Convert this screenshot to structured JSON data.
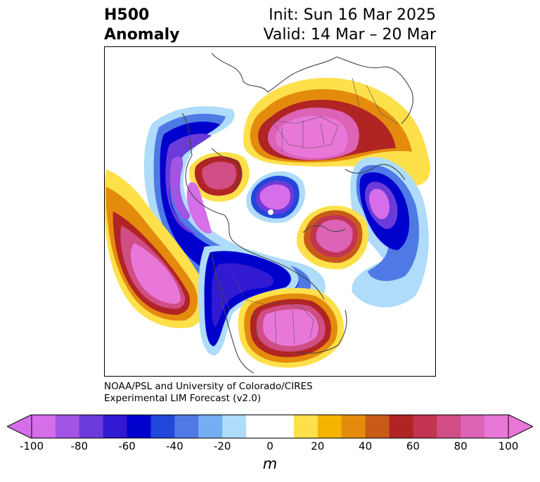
{
  "title": {
    "left_line1": "H500",
    "left_line2": "Anomaly",
    "right_line1": "Init: Sun 16 Mar 2025",
    "right_line2": "Valid: 14 Mar – 20 Mar"
  },
  "credit": {
    "line1": "NOAA/PSL and University of Colorado/CIRES",
    "line2": "Experimental LIM Forecast (v2.0)"
  },
  "colorbar": {
    "unit": "m",
    "ticks": [
      "-100",
      "-80",
      "-60",
      "-40",
      "-20",
      "0",
      "20",
      "40",
      "60",
      "80",
      "100"
    ],
    "colors": [
      "#d66de9",
      "#a155e2",
      "#6b3bd9",
      "#3219d2",
      "#0000cc",
      "#2247db",
      "#4f7ae6",
      "#75aef2",
      "#aedcfa",
      "#ffffff",
      "#ffffff",
      "#fee04b",
      "#f4b400",
      "#e48b0d",
      "#c95b18",
      "#b02424",
      "#c23452",
      "#d04d85",
      "#dc63b6",
      "#e877d8"
    ],
    "under_color": "#d66de9",
    "over_color": "#e877d8"
  },
  "map_features": {
    "projection": "north-polar-stereographic",
    "anomalies": [
      {
        "region": "Greenland / North Atlantic",
        "sign": "positive",
        "peak_m": 100
      },
      {
        "region": "Alaska / Bering Strait",
        "sign": "positive",
        "peak_m": 100
      },
      {
        "region": "East Pacific / Gulf of Alaska",
        "sign": "positive",
        "peak_m": 100
      },
      {
        "region": "Eastern Siberia",
        "sign": "positive",
        "peak_m": 90
      },
      {
        "region": "Western Europe",
        "sign": "positive",
        "peak_m": 100
      },
      {
        "region": "Arctic Ocean / North Pole",
        "sign": "negative",
        "peak_m": -100
      },
      {
        "region": "Central Asia / Kazakhstan",
        "sign": "negative",
        "peak_m": -100
      },
      {
        "region": "North Pacific",
        "sign": "negative",
        "peak_m": -100
      },
      {
        "region": "Eastern Europe / Caspian",
        "sign": "negative",
        "peak_m": -90
      },
      {
        "region": "Western Canada / Northeast Pacific",
        "sign": "negative",
        "peak_m": -80
      }
    ]
  }
}
